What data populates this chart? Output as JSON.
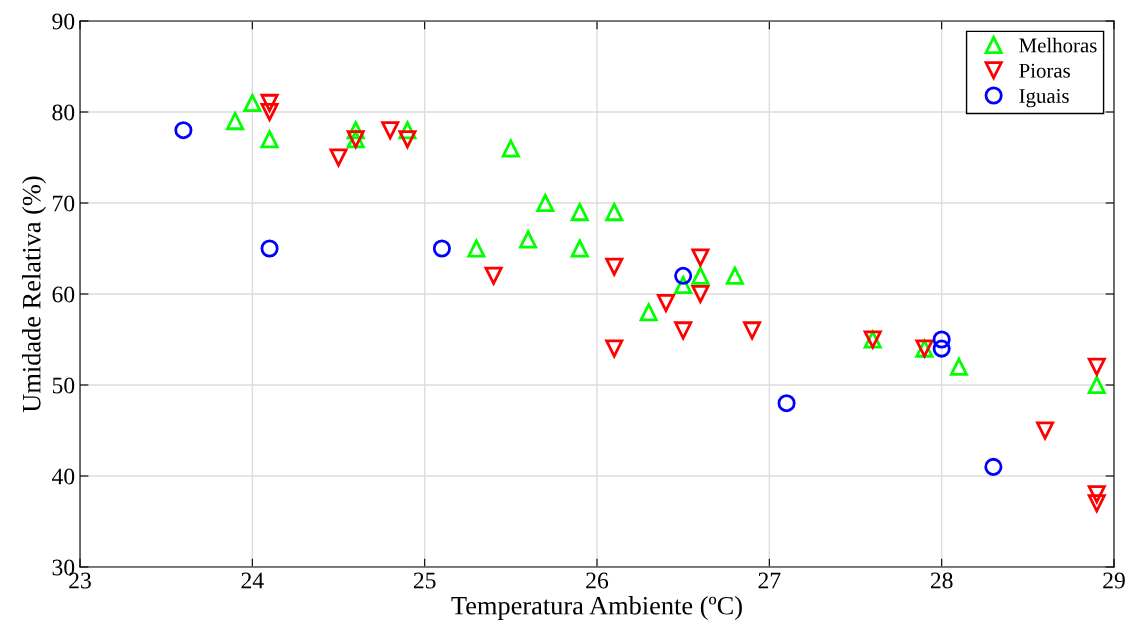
{
  "chart_data": {
    "type": "scatter",
    "xlabel": "Temperatura Ambiente (ºC)",
    "ylabel": "Umidade Relativa (%)",
    "xlim": [
      23,
      29
    ],
    "xticks": [
      23,
      24,
      25,
      26,
      27,
      28,
      29
    ],
    "ylim": [
      30,
      90
    ],
    "yticks": [
      30,
      40,
      50,
      60,
      70,
      80,
      90
    ],
    "grid": true,
    "legend": "top right",
    "series": [
      {
        "name": "Melhoras",
        "color": "#00ff00",
        "marker": "triangle",
        "x": [
          23.9,
          24.0,
          24.1,
          24.6,
          24.6,
          24.9,
          25.3,
          25.5,
          25.6,
          25.7,
          25.9,
          25.9,
          26.1,
          26.3,
          26.5,
          26.6,
          26.8,
          27.6,
          27.9,
          28.1,
          28.9
        ],
        "values": [
          79,
          81,
          77,
          78,
          77,
          78,
          65,
          76,
          66,
          70,
          69,
          65,
          69,
          58,
          61,
          62,
          62,
          55,
          54,
          52,
          50
        ]
      },
      {
        "name": "Pioras",
        "color": "#ff0000",
        "marker": "triangle_down",
        "x": [
          24.1,
          24.1,
          24.5,
          24.6,
          24.8,
          24.9,
          25.4,
          26.1,
          26.1,
          26.4,
          26.5,
          26.6,
          26.6,
          26.9,
          27.6,
          27.9,
          28.6,
          28.9,
          28.9,
          28.9
        ],
        "values": [
          81,
          80,
          75,
          77,
          78,
          77,
          62,
          63,
          54,
          59,
          56,
          64,
          60,
          56,
          55,
          54,
          45,
          52,
          38,
          37
        ]
      },
      {
        "name": "Iguais",
        "color": "#0000ff",
        "marker": "circle",
        "x": [
          23.6,
          24.1,
          25.1,
          26.5,
          27.1,
          28.0,
          28.0,
          28.3
        ],
        "values": [
          78,
          65,
          65,
          62,
          48,
          55,
          54,
          41
        ]
      }
    ]
  }
}
